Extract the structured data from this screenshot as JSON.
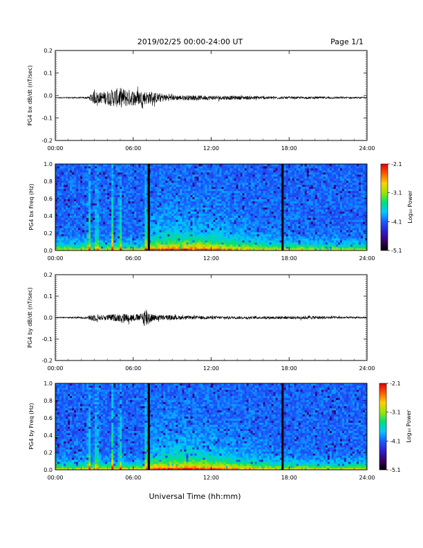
{
  "header": {
    "title": "2019/02/25  00:00-24:00 UT",
    "page": "Page 1/1"
  },
  "footer": {
    "xlabel": "Universal Time (hh:mm)"
  },
  "colorbar": {
    "label": "Log₁₀ Power",
    "ticks": [
      "-2.1",
      "-3.1",
      "-4.1",
      "-5.1"
    ],
    "range": [
      -5.1,
      -2.1
    ],
    "colors": [
      "#000000",
      "#3a006a",
      "#2b1fd0",
      "#1a5cff",
      "#00c8ff",
      "#00e07a",
      "#9ae600",
      "#ffd000",
      "#ff5a00",
      "#e00000"
    ]
  },
  "chart_data": [
    {
      "type": "line",
      "ylabel": "PG4 bx dB/dt (nT/sec)",
      "xlim": [
        0,
        24
      ],
      "ylim": [
        -0.2,
        0.2
      ],
      "xticks": [
        "00:00",
        "06:00",
        "12:00",
        "18:00",
        "24:00"
      ],
      "yticks": [
        "0.2",
        "0.1",
        "0.0",
        "-0.1",
        "-0.2"
      ],
      "baseline": -0.01,
      "activity_envelope": [
        {
          "x": 0,
          "amp": 0.002
        },
        {
          "x": 2.5,
          "amp": 0.004
        },
        {
          "x": 3.0,
          "amp": 0.03
        },
        {
          "x": 3.5,
          "amp": 0.025
        },
        {
          "x": 4.5,
          "amp": 0.04
        },
        {
          "x": 5.0,
          "amp": 0.045
        },
        {
          "x": 6.0,
          "amp": 0.035
        },
        {
          "x": 7.0,
          "amp": 0.03
        },
        {
          "x": 9.0,
          "amp": 0.012
        },
        {
          "x": 12.0,
          "amp": 0.01
        },
        {
          "x": 15.0,
          "amp": 0.008
        },
        {
          "x": 18.0,
          "amp": 0.005
        },
        {
          "x": 21.0,
          "amp": 0.005
        },
        {
          "x": 24.0,
          "amp": 0.003
        }
      ]
    },
    {
      "type": "heatmap",
      "ylabel": "PG4 bx Freq (Hz)",
      "xlim": [
        0,
        24
      ],
      "ylim": [
        0,
        1.0
      ],
      "xticks": [
        "00:00",
        "06:00",
        "12:00",
        "18:00",
        "24:00"
      ],
      "yticks": [
        "1.0",
        "0.8",
        "0.6",
        "0.4",
        "0.2",
        "0.0"
      ],
      "data_gaps_utc": [
        7.2,
        17.5
      ],
      "broadband_bursts_utc": [
        2.6,
        3.2,
        4.4,
        5.0,
        7.0
      ]
    },
    {
      "type": "line",
      "ylabel": "PG4 by dB/dt (nT/sec)",
      "xlim": [
        0,
        24
      ],
      "ylim": [
        -0.2,
        0.2
      ],
      "xticks": [
        "00:00",
        "06:00",
        "12:00",
        "18:00",
        "24:00"
      ],
      "yticks": [
        "0.2",
        "0.1",
        "0.0",
        "-0.1",
        "-0.2"
      ],
      "baseline": 0.0,
      "activity_envelope": [
        {
          "x": 0,
          "amp": 0.002
        },
        {
          "x": 2.5,
          "amp": 0.005
        },
        {
          "x": 2.8,
          "amp": 0.02
        },
        {
          "x": 3.5,
          "amp": 0.012
        },
        {
          "x": 5.2,
          "amp": 0.02
        },
        {
          "x": 6.5,
          "amp": 0.015
        },
        {
          "x": 7.0,
          "amp": 0.05
        },
        {
          "x": 7.5,
          "amp": 0.015
        },
        {
          "x": 10.0,
          "amp": 0.008
        },
        {
          "x": 15.0,
          "amp": 0.006
        },
        {
          "x": 20.0,
          "amp": 0.008
        },
        {
          "x": 24.0,
          "amp": 0.003
        }
      ]
    },
    {
      "type": "heatmap",
      "ylabel": "PG4 by Freq (Hz)",
      "xlim": [
        0,
        24
      ],
      "ylim": [
        0,
        1.0
      ],
      "xticks": [
        "00:00",
        "06:00",
        "12:00",
        "18:00",
        "24:00"
      ],
      "yticks": [
        "1.0",
        "0.8",
        "0.6",
        "0.4",
        "0.2",
        "0.0"
      ],
      "data_gaps_utc": [
        7.2,
        17.5
      ],
      "broadband_bursts_utc": [
        2.6,
        3.2,
        4.4,
        5.0,
        7.0
      ]
    }
  ]
}
